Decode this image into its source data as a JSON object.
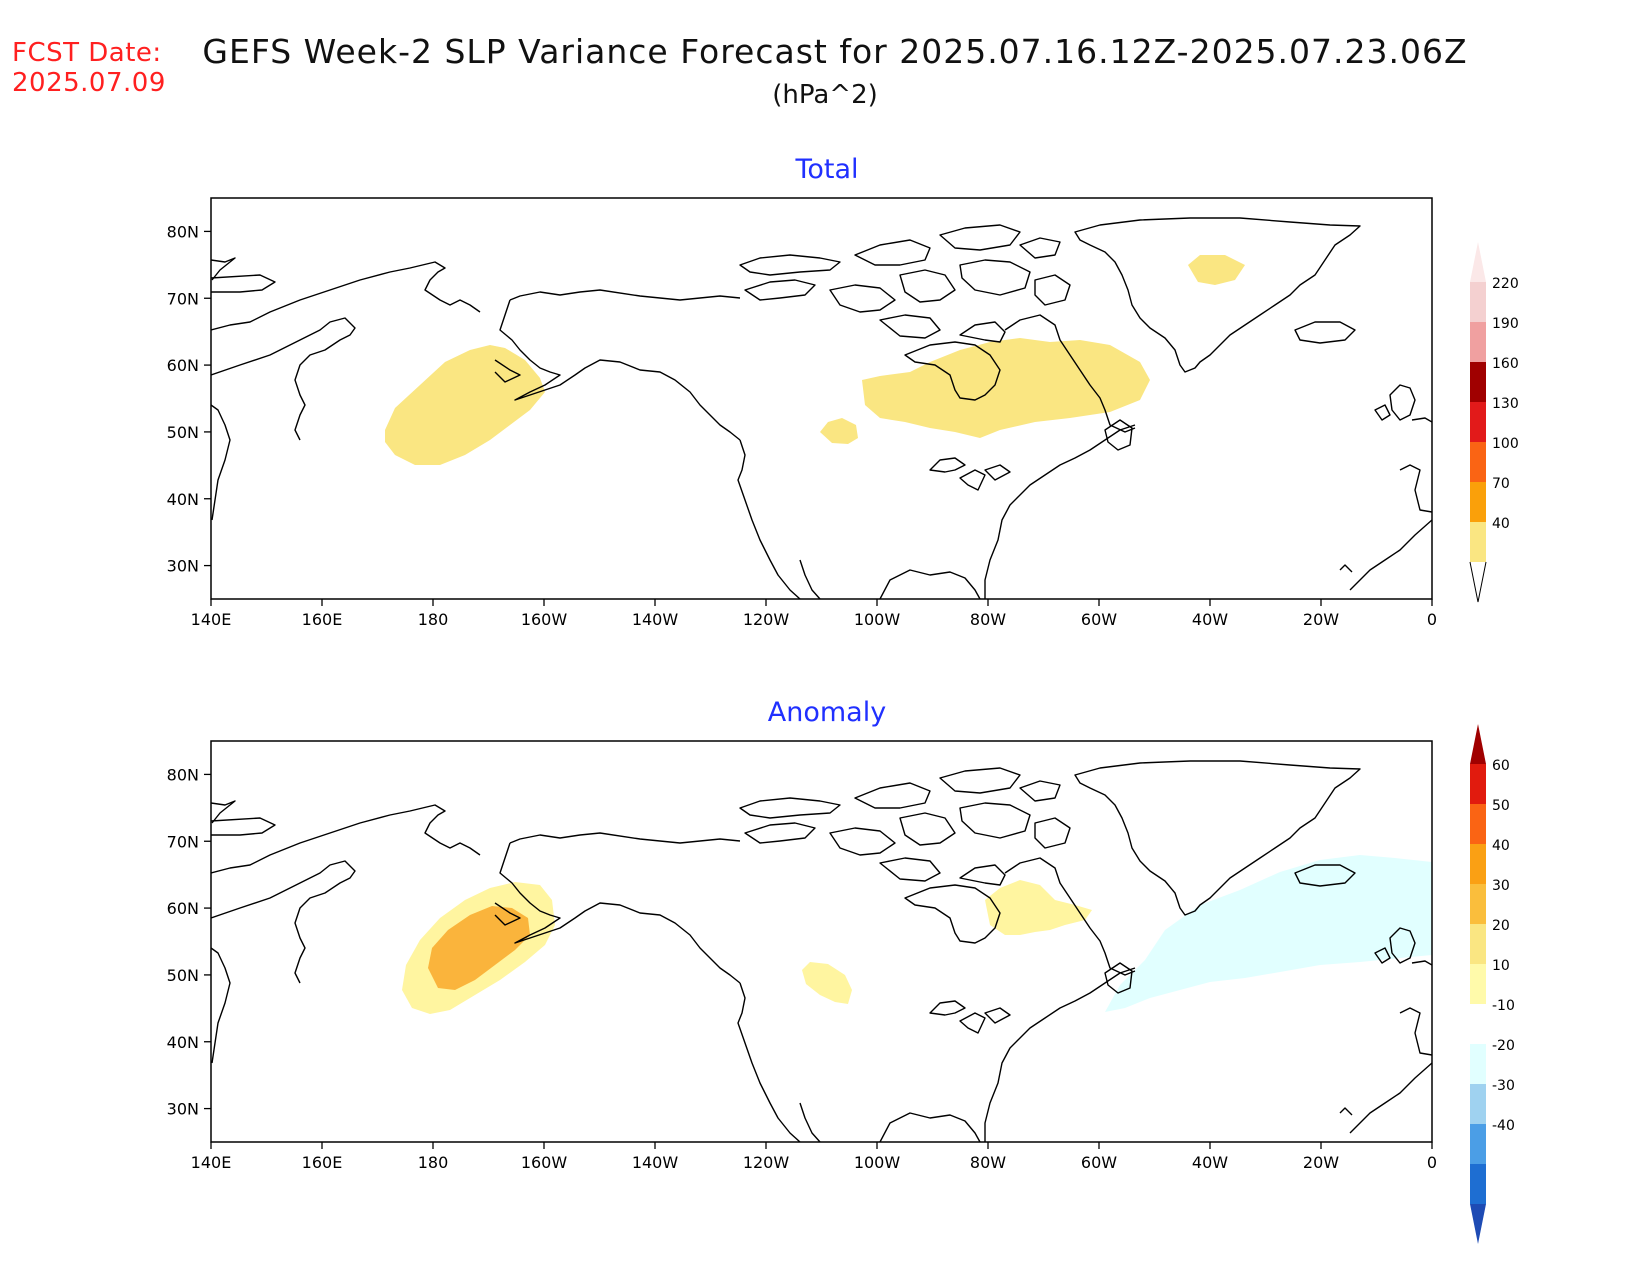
{
  "header": {
    "fcst_label": "FCST Date:",
    "fcst_date": "2025.07.09",
    "title": "GEFS Week-2 SLP Variance Forecast for 2025.07.16.12Z-2025.07.23.06Z",
    "units": "(hPa^2)"
  },
  "axes": {
    "lon_labels": [
      "140E",
      "160E",
      "180",
      "160W",
      "140W",
      "120W",
      "100W",
      "80W",
      "60W",
      "40W",
      "20W",
      "0"
    ],
    "lat_labels": [
      "80N",
      "70N",
      "60N",
      "50N",
      "40N",
      "30N"
    ],
    "lon_range_deg_east": [
      140,
      360
    ],
    "lat_range": [
      25,
      85
    ]
  },
  "panels": [
    {
      "title": "Total",
      "colorbar": {
        "labels": [
          "220",
          "190",
          "160",
          "130",
          "100",
          "70",
          "40"
        ],
        "colors": [
          "#f4d0d0",
          "#f0a0a0",
          "#a00000",
          "#e21a1a",
          "#fa6414",
          "#faa00a",
          "#fae682"
        ]
      },
      "shaded_regions": [
        {
          "name": "north-pacific-max",
          "level": "40-70",
          "color": "#fae682"
        },
        {
          "name": "hudson-bay-labrador-max",
          "level": "40-70",
          "color": "#fae682"
        },
        {
          "name": "northern-plains-small-max",
          "level": "40-70",
          "color": "#fae682"
        },
        {
          "name": "greenland-small-max",
          "level": "40-70",
          "color": "#fae682"
        }
      ]
    },
    {
      "title": "Anomaly",
      "colorbar": {
        "labels": [
          "60",
          "50",
          "40",
          "30",
          "20",
          "10",
          "-10",
          "-20",
          "-30",
          "-40"
        ],
        "colors": [
          "#a00000",
          "#e11b0e",
          "#fa6414",
          "#faa014",
          "#fabe3c",
          "#fae682",
          "#fffaaa",
          "#ffffff",
          "#e1ffff",
          "#9fd2f0",
          "#4b9ee6",
          "#1e6ed2",
          "#1e4bb4"
        ]
      },
      "shaded_regions": [
        {
          "name": "bering-sea-anomaly-outer",
          "level": "10-20",
          "color": "#fff5a0"
        },
        {
          "name": "bering-sea-anomaly-inner",
          "level": "20-30",
          "color": "#fab43c"
        },
        {
          "name": "hudson-bay-anomaly",
          "level": "10-20",
          "color": "#fff5a0"
        },
        {
          "name": "northern-plains-anomaly",
          "level": "10-20",
          "color": "#fff5a0"
        },
        {
          "name": "north-atlantic-negative-anomaly",
          "level": "-10 to -20",
          "color": "#e1ffff"
        }
      ]
    }
  ]
}
